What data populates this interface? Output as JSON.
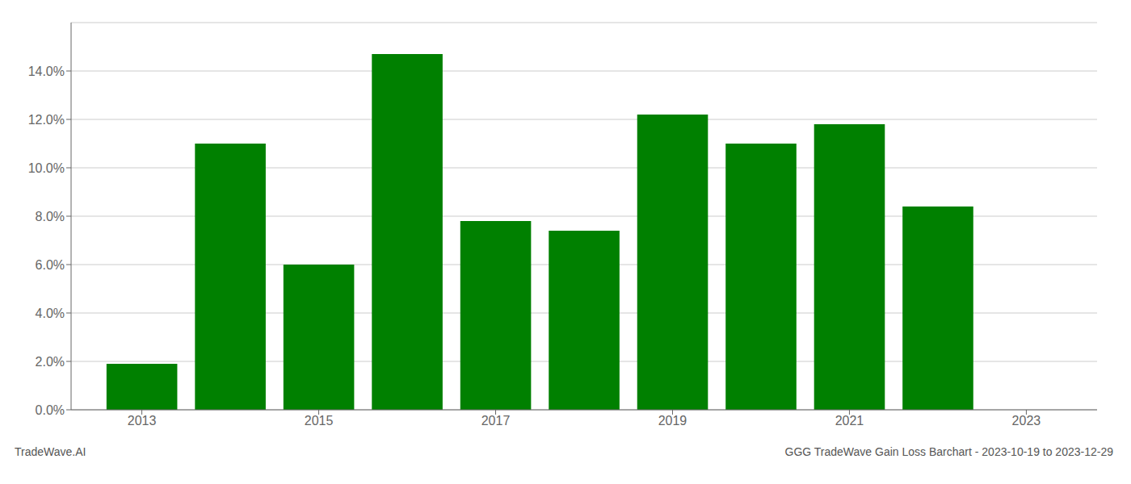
{
  "chart_data": {
    "type": "bar",
    "title": "GGG TradeWave Gain Loss Barchart - 2023-10-19 to 2023-12-29",
    "annotations": [
      "TradeWave.AI"
    ],
    "x": [
      2013,
      2014,
      2015,
      2016,
      2017,
      2018,
      2019,
      2020,
      2021,
      2022
    ],
    "values": [
      0.019,
      0.11,
      0.06,
      0.147,
      0.078,
      0.074,
      0.122,
      0.11,
      0.118,
      0.084
    ],
    "color": "#008000",
    "xlim": [
      2012.2,
      2023.8
    ],
    "xticks": [
      2013,
      2015,
      2017,
      2019,
      2021,
      2023
    ],
    "ylim": [
      0,
      0.16
    ],
    "yticks": [
      {
        "value": 0.0,
        "label": "0.0%"
      },
      {
        "value": 0.02,
        "label": "2.0%"
      },
      {
        "value": 0.04,
        "label": "4.0%"
      },
      {
        "value": 0.06,
        "label": "6.0%"
      },
      {
        "value": 0.08,
        "label": "8.0%"
      },
      {
        "value": 0.1,
        "label": "10.0%"
      },
      {
        "value": 0.12,
        "label": "12.0%"
      },
      {
        "value": 0.14,
        "label": "14.0%"
      }
    ],
    "grid": true
  }
}
